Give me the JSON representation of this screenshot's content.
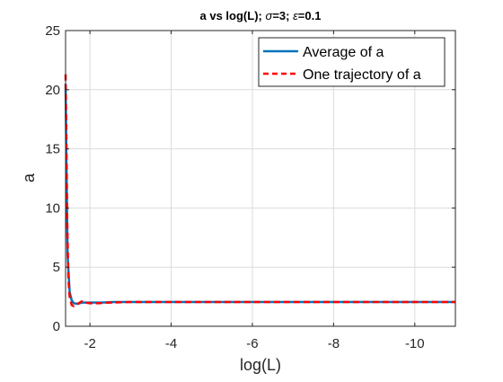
{
  "chart_data": {
    "type": "line",
    "title_parts": [
      "a vs log(L); ",
      "σ",
      "=3; ",
      "ε",
      "=0.1"
    ],
    "xlabel": "log(L)",
    "ylabel": "a",
    "x_reversed": true,
    "xlim": [
      -1.4,
      -11
    ],
    "ylim": [
      0,
      25
    ],
    "xticks": [
      -2,
      -4,
      -6,
      -8,
      -10
    ],
    "yticks": [
      0,
      5,
      10,
      15,
      20,
      25
    ],
    "grid": true,
    "legend_position": "top-right",
    "colors": {
      "average": "#0072BD",
      "trajectory": "#FF0000"
    },
    "series": [
      {
        "name": "Average of a",
        "style": "solid",
        "x": [
          -1.4,
          -1.42,
          -1.45,
          -1.5,
          -1.55,
          -1.6,
          -1.7,
          -1.8,
          -2.0,
          -2.3,
          -2.6,
          -3.0,
          -4.0,
          -5.0,
          -6.0,
          -7.0,
          -8.0,
          -9.0,
          -10.0,
          -11.0
        ],
        "y": [
          20.5,
          14.0,
          6.0,
          2.9,
          2.2,
          1.95,
          1.9,
          2.0,
          2.0,
          2.0,
          2.05,
          2.05,
          2.05,
          2.05,
          2.05,
          2.05,
          2.05,
          2.05,
          2.05,
          2.05
        ]
      },
      {
        "name": "One trajectory of a",
        "style": "dashed",
        "x": [
          -1.4,
          -1.42,
          -1.44,
          -1.47,
          -1.5,
          -1.55,
          -1.6,
          -1.7,
          -1.8,
          -1.9,
          -2.0,
          -2.2,
          -2.5,
          -3.0,
          -4.0,
          -5.0,
          -6.0,
          -7.0,
          -8.0,
          -9.0,
          -10.0,
          -11.0
        ],
        "y": [
          21.3,
          16.0,
          9.0,
          4.0,
          2.5,
          1.8,
          1.7,
          1.9,
          2.1,
          2.0,
          1.95,
          1.95,
          2.0,
          2.05,
          2.05,
          2.05,
          2.05,
          2.05,
          2.05,
          2.05,
          2.05,
          2.05
        ]
      }
    ]
  }
}
